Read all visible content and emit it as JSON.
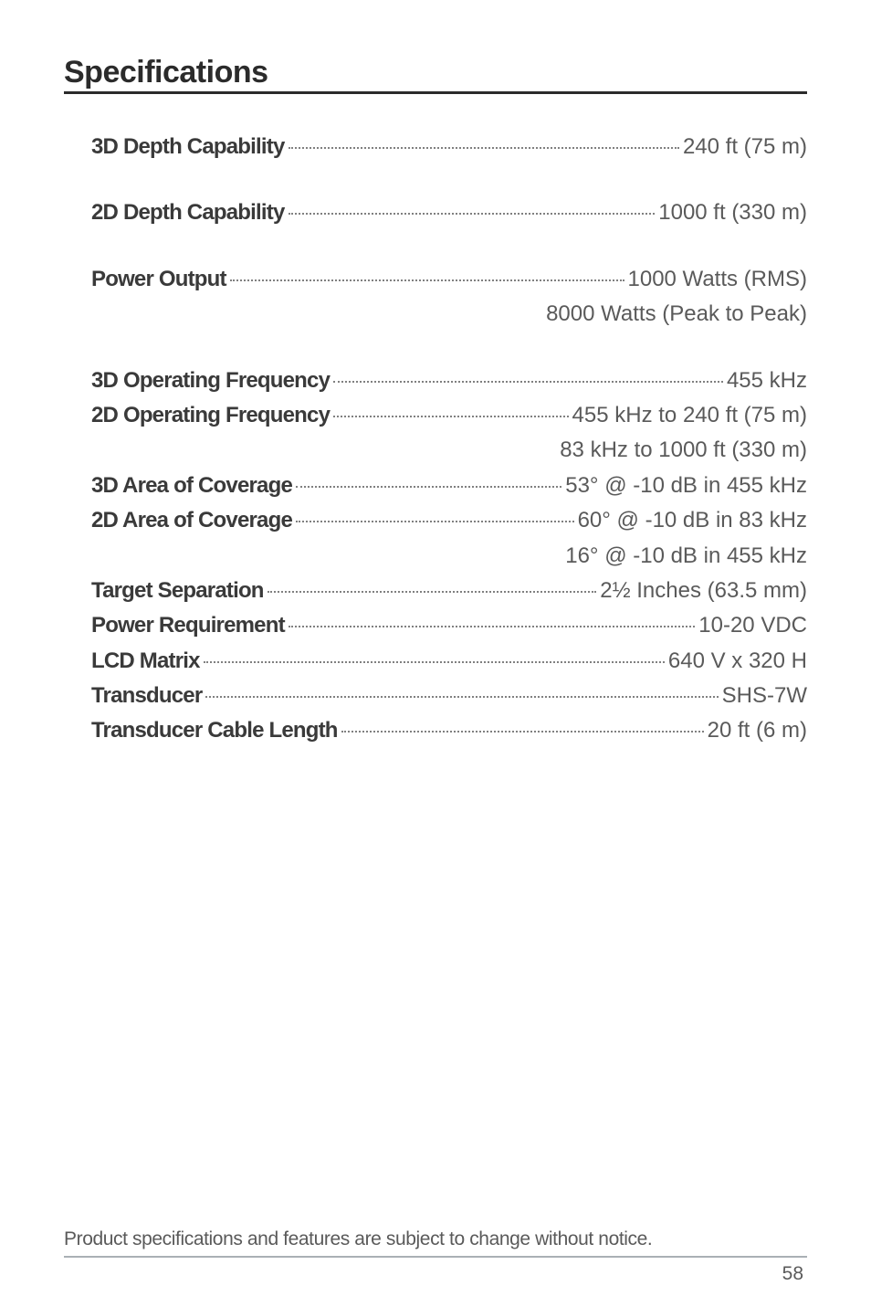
{
  "title": "Specifications",
  "specs": [
    {
      "label": "3D Depth Capability",
      "value": "240 ft (75 m)",
      "gap": "big"
    },
    {
      "label": "2D Depth Capability",
      "value": "1000 ft (330 m)",
      "gap": "big"
    },
    {
      "label": "Power Output",
      "value": "1000 Watts (RMS)",
      "cont": [
        "8000 Watts (Peak to Peak)"
      ],
      "contGap": "big"
    },
    {
      "label": "3D Operating Frequency",
      "value": "455 kHz"
    },
    {
      "label": "2D Operating Frequency",
      "value": "455 kHz to 240 ft (75 m)",
      "cont": [
        "83 kHz to 1000 ft (330 m)"
      ]
    },
    {
      "label": "3D Area of Coverage",
      "value": "53° @ -10 dB in 455 kHz"
    },
    {
      "label": "2D Area of Coverage",
      "value": "60° @ -10 dB in 83 kHz",
      "cont": [
        "16° @ -10 dB in 455 kHz"
      ]
    },
    {
      "label": "Target Separation",
      "value": "2½ Inches (63.5 mm)"
    },
    {
      "label": "Power Requirement",
      "value": "10-20 VDC"
    },
    {
      "label": "LCD Matrix",
      "value": "640 V x 320 H"
    },
    {
      "label": "Transducer",
      "value": "SHS-7W"
    },
    {
      "label": "Transducer Cable Length",
      "value": "20 ft (6 m)"
    }
  ],
  "footnote": "Product specifications and features are subject to change without notice.",
  "pageNumber": "58"
}
